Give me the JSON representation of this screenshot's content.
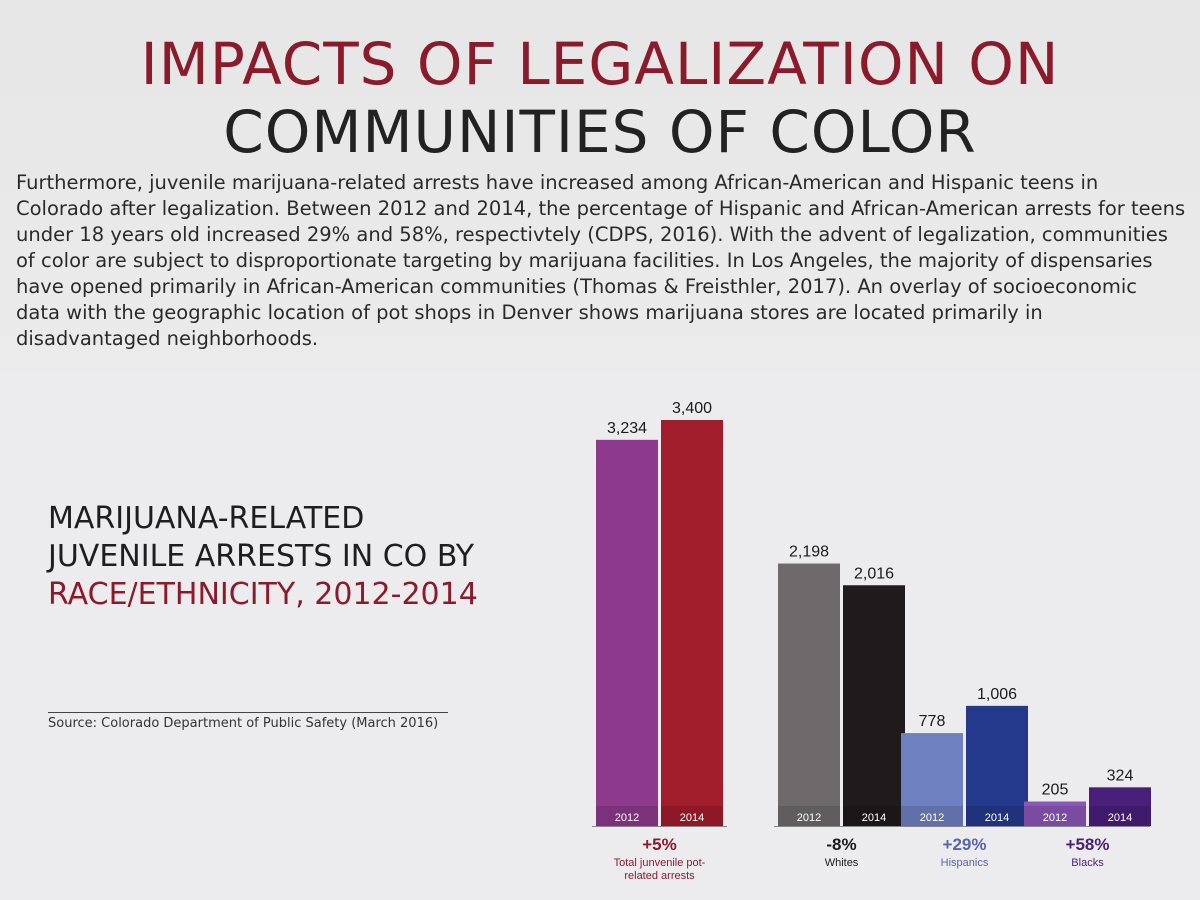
{
  "header": {
    "title_line1": "IMPACTS OF LEGALIZATION ON",
    "title_line2": "COMMUNITIES OF COLOR"
  },
  "body": {
    "paragraph": "Furthermore, juvenile marijuana-related arrests have increased among African-American and Hispanic teens in Colorado after legalization. Between 2012 and 2014, the percentage of Hispanic and African-American arrests for teens under 18 years old increased 29% and 58%, respectivtely (CDPS, 2016). With the advent of legalization, communities of color are subject to disproportionate targeting by marijuana facilities. In Los Angeles, the majority of dispensaries have opened primarily in African-American communities (Thomas & Freisthler, 2017). An overlay of socioeconomic data with the geographic location of pot shops in Denver shows marijuana stores are located primarily in disadvantaged neighborhoods."
  },
  "chart_heading": {
    "line1": "MARIJUANA-RELATED",
    "line2": "JUVENILE ARRESTS IN CO BY",
    "line3": "RACE/ETHNICITY, 2012-2014"
  },
  "source": "Source: Colorado Department of Public Safety (March 2016)",
  "colors": {
    "title_accent": "#8b1a2b",
    "total_2012": "#8e3a8c",
    "total_2014": "#a11d2c",
    "whites_2012": "#6e6a6b",
    "whites_2014": "#1f1b1c",
    "hispanics_2012": "#6f80c0",
    "hispanics_2014": "#24398c",
    "blacks_2012": "#8a57b8",
    "blacks_2014": "#4a1f7a",
    "pct_total": "#8b1a2b",
    "pct_whites": "#1a1a1a",
    "pct_hispanics": "#5566aa",
    "pct_blacks": "#4a1f7a"
  },
  "chart_data": {
    "type": "bar",
    "title": "MARIJUANA-RELATED JUVENILE ARRESTS IN CO BY RACE/ETHNICITY, 2012-2014",
    "xlabel": "",
    "ylabel": "",
    "ylim": [
      0,
      3400
    ],
    "grid": false,
    "groups": [
      {
        "key": "total",
        "label_lines": [
          "Total junvenile pot-",
          "related arrests"
        ],
        "change": "+5%",
        "bars": [
          {
            "year": "2012",
            "value": 3234,
            "label": "3,234"
          },
          {
            "year": "2014",
            "value": 3400,
            "label": "3,400"
          }
        ]
      },
      {
        "key": "whites",
        "label_lines": [
          "Whites"
        ],
        "change": "-8%",
        "bars": [
          {
            "year": "2012",
            "value": 2198,
            "label": "2,198"
          },
          {
            "year": "2014",
            "value": 2016,
            "label": "2,016"
          }
        ]
      },
      {
        "key": "hispanics",
        "label_lines": [
          "Hispanics"
        ],
        "change": "+29%",
        "bars": [
          {
            "year": "2012",
            "value": 778,
            "label": "778"
          },
          {
            "year": "2014",
            "value": 1006,
            "label": "1,006"
          }
        ]
      },
      {
        "key": "blacks",
        "label_lines": [
          "Blacks"
        ],
        "change": "+58%",
        "bars": [
          {
            "year": "2012",
            "value": 205,
            "label": "205"
          },
          {
            "year": "2014",
            "value": 324,
            "label": "324"
          }
        ]
      }
    ]
  }
}
